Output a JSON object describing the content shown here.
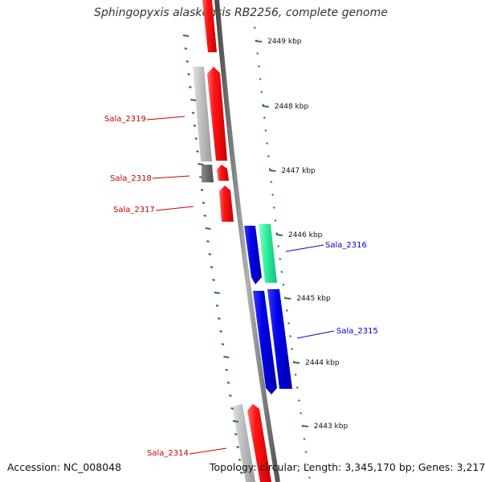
{
  "title": "Sphingopyxis alaskensis RB2256, complete genome",
  "footer": {
    "accession": "Accession: NC_008048",
    "stats": "Topology: circular; Length: 3,345,170 bp; Genes: 3,217"
  },
  "colors": {
    "backbone": "#7a7a7a",
    "forward_gene": "#ff1a1a",
    "reverse_gene": "#0000ee",
    "grey_gene": "#c4c4c4",
    "dark_grey_gene": "#6a6a6a",
    "green_gene": "#33f0a0",
    "tick": "#2a7a2a",
    "label_forward": "#cc0000",
    "label_reverse": "#0000cc"
  },
  "scale_ticks": [
    {
      "kbp": 2449,
      "label": "2449 kbp"
    },
    {
      "kbp": 2448,
      "label": "2448 kbp"
    },
    {
      "kbp": 2447,
      "label": "2447 kbp"
    },
    {
      "kbp": 2446,
      "label": "2446 kbp"
    },
    {
      "kbp": 2445,
      "label": "2445 kbp"
    },
    {
      "kbp": 2444,
      "label": "2444 kbp"
    },
    {
      "kbp": 2443,
      "label": "2443 kbp"
    }
  ],
  "gene_labels": [
    {
      "name": "Sala_2319",
      "strand": "forward"
    },
    {
      "name": "Sala_2318",
      "strand": "forward"
    },
    {
      "name": "Sala_2317",
      "strand": "forward"
    },
    {
      "name": "Sala_2316",
      "strand": "reverse"
    },
    {
      "name": "Sala_2315",
      "strand": "reverse"
    },
    {
      "name": "Sala_2314",
      "strand": "forward"
    }
  ]
}
